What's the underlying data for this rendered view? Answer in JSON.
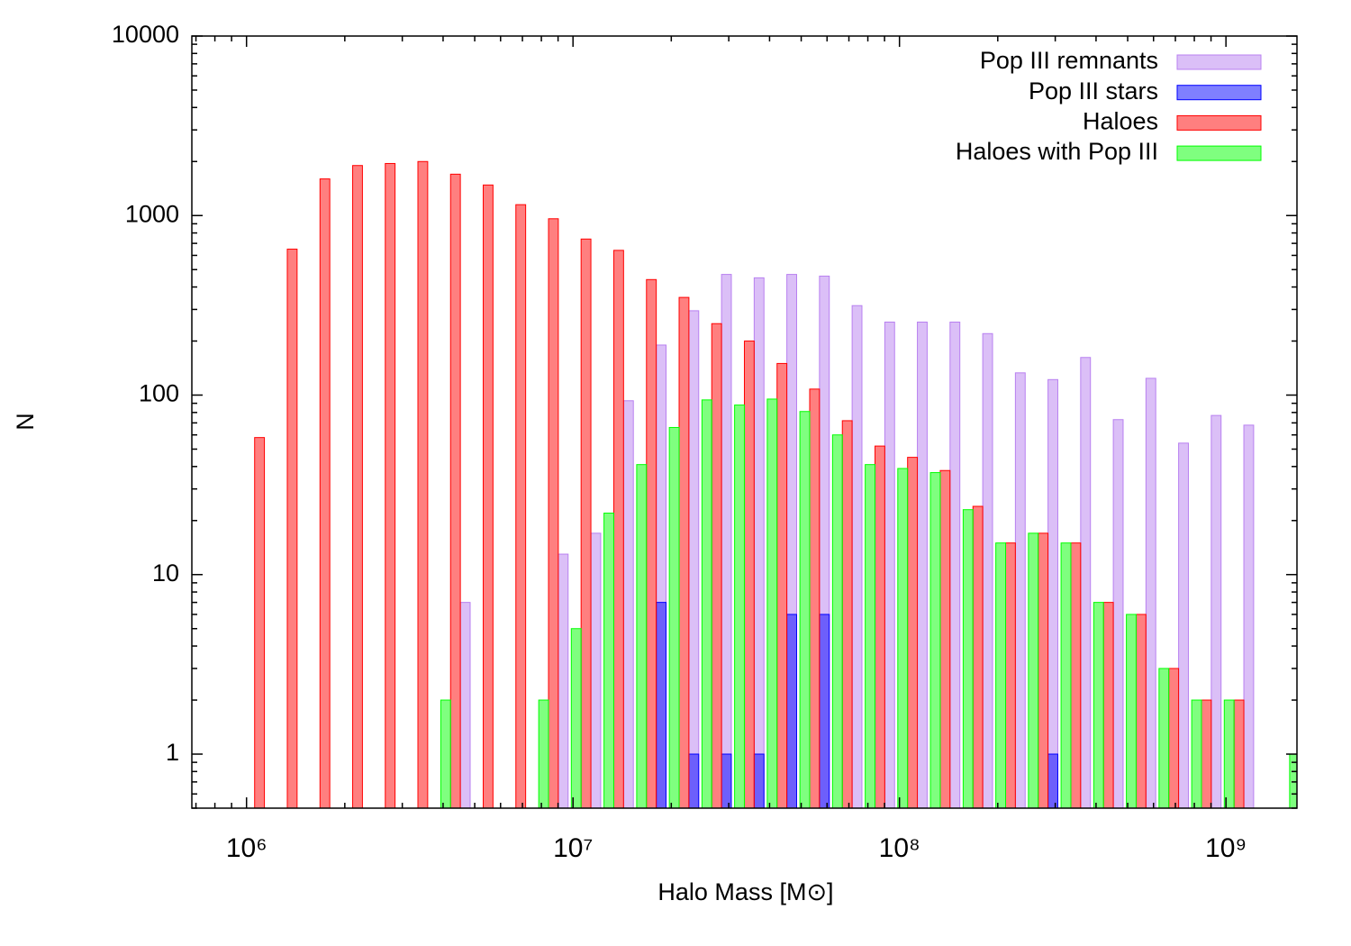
{
  "chart_data": {
    "type": "histogram",
    "x_label": "Halo Mass [M⊙]",
    "y_label": "N",
    "log_x": true,
    "log_y": true,
    "legend": "upper right",
    "xlim": [
      680000,
      1650000000
    ],
    "ylim": [
      0.5,
      10000
    ],
    "xticks": [
      {
        "value": 1000000,
        "label": "10⁶"
      },
      {
        "value": 10000000,
        "label": "10⁷"
      },
      {
        "value": 100000000,
        "label": "10⁸"
      },
      {
        "value": 1000000000,
        "label": "10⁹"
      }
    ],
    "yticks": [
      1,
      10,
      100,
      1000,
      10000
    ],
    "x": [
      1096000,
      1380000,
      1738000,
      2188000,
      2754000,
      3467000,
      4365000,
      5495000,
      6918000,
      8710000,
      10960000,
      13800000,
      17380000,
      21880000,
      27540000,
      34670000,
      43650000,
      54950000,
      69180000,
      87100000,
      109600000,
      138000000,
      173800000,
      218800000,
      275400000,
      346700000,
      436500000,
      549500000,
      691800000,
      871000000,
      1096000000,
      1380000000,
      1738000000
    ],
    "series": [
      {
        "name": "Pop III remnants",
        "color": "#b880f0",
        "values": [
          null,
          null,
          null,
          null,
          null,
          null,
          7,
          null,
          null,
          13,
          17,
          93,
          190,
          295,
          470,
          450,
          470,
          460,
          315,
          255,
          255,
          255,
          220,
          133,
          122,
          162,
          73,
          124,
          54,
          77,
          68,
          null,
          null
        ]
      },
      {
        "name": "Pop III stars",
        "color": "#0000ff",
        "values": [
          null,
          null,
          null,
          null,
          null,
          null,
          null,
          null,
          null,
          null,
          null,
          null,
          7,
          1,
          1,
          1,
          6,
          6,
          null,
          null,
          null,
          null,
          null,
          null,
          1,
          null,
          null,
          null,
          null,
          null,
          null,
          null,
          null
        ]
      },
      {
        "name": "Haloes",
        "color": "#ff0000",
        "values": [
          58,
          650,
          1600,
          1900,
          1950,
          2000,
          1700,
          1480,
          1150,
          960,
          740,
          640,
          440,
          350,
          250,
          200,
          150,
          108,
          72,
          52,
          45,
          38,
          24,
          15,
          17,
          15,
          7,
          6,
          3,
          2,
          2,
          null,
          null
        ]
      },
      {
        "name": "Haloes with Pop III",
        "color": "#00ff00",
        "values": [
          null,
          null,
          null,
          null,
          null,
          null,
          2,
          null,
          null,
          2,
          5,
          22,
          41,
          66,
          94,
          88,
          95,
          81,
          60,
          41,
          39,
          37,
          23,
          15,
          17,
          15,
          7,
          6,
          3,
          2,
          2,
          null,
          1
        ]
      }
    ]
  }
}
